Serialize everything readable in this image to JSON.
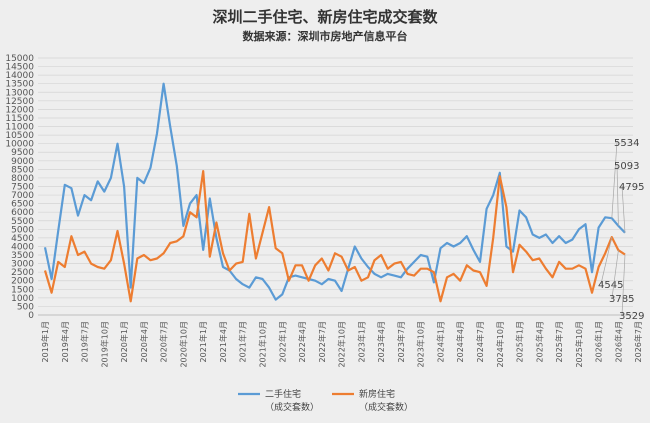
{
  "chart_data": {
    "type": "line",
    "title": "深圳二手住宅、新房住宅成交套数",
    "subtitle": "数据来源：深圳市房地产信息平台",
    "ylim": [
      0,
      15000
    ],
    "yticks": [
      0,
      500,
      1000,
      1500,
      2000,
      2500,
      3000,
      3500,
      4000,
      4500,
      5000,
      5500,
      6000,
      6500,
      7000,
      7500,
      8000,
      8500,
      9000,
      9500,
      10000,
      10500,
      11000,
      11500,
      12000,
      12500,
      13000,
      13500,
      14000,
      14500,
      15000
    ],
    "x_labels": [
      "2019年1月",
      "2019年4月",
      "2019年7月",
      "2019年10月",
      "2020年1月",
      "2020年4月",
      "2020年7月",
      "2020年10月",
      "2021年1月",
      "2021年4月",
      "2021年7月",
      "2021年10月",
      "2022年1月",
      "2022年4月",
      "2022年7月",
      "2022年10月",
      "2023年1月",
      "2023年4月",
      "2023年7月",
      "2023年10月",
      "2024年1月",
      "2024年4月",
      "2024年7月",
      "2024年10月",
      "2025年1月",
      "2025年4月",
      "2025年7月",
      "2025年10月",
      "2026年1月",
      "2026年4月",
      "2026年7月"
    ],
    "series": [
      {
        "name": "二手住宅",
        "legend_line2": "（成交套数）",
        "color": "#5b9bd5",
        "values": [
          3950,
          2100,
          4900,
          7600,
          7400,
          5800,
          7000,
          6700,
          7800,
          7200,
          8000,
          10000,
          7500,
          1600,
          8000,
          7700,
          8600,
          10600,
          13500,
          11000,
          8700,
          5200,
          6500,
          7000,
          3800,
          6800,
          4500,
          2800,
          2600,
          2100,
          1800,
          1600,
          2200,
          2100,
          1600,
          900,
          1200,
          2200,
          2300,
          2200,
          2100,
          2000,
          1800,
          2100,
          2000,
          1400,
          2700,
          4000,
          3300,
          2800,
          2400,
          2200,
          2400,
          2300,
          2200,
          2700,
          3100,
          3500,
          3400,
          1900,
          3900,
          4200,
          4000,
          4200,
          4600,
          3800,
          3100,
          6200,
          7000,
          8300,
          4000,
          3700,
          6100,
          5700,
          4700,
          4500,
          4700,
          4200,
          4600,
          4200,
          4400,
          5000,
          5300,
          2500,
          5100,
          5700,
          5650,
          5200,
          4795
        ],
        "end_label": "4795"
      },
      {
        "name": "新房住宅",
        "legend_line2": "（成交套数）",
        "color": "#ed7d31",
        "values": [
          2600,
          1300,
          3100,
          2800,
          4600,
          3500,
          3700,
          3000,
          2800,
          2700,
          3200,
          4900,
          3000,
          800,
          3300,
          3500,
          3200,
          3300,
          3600,
          4200,
          4300,
          4600,
          6000,
          5700,
          8400,
          3400,
          5400,
          3600,
          2600,
          3000,
          3100,
          5900,
          3300,
          4800,
          6300,
          3900,
          3600,
          2000,
          2900,
          2900,
          2000,
          2900,
          3300,
          2600,
          3600,
          3400,
          2600,
          2800,
          2000,
          2200,
          3200,
          3500,
          2700,
          3000,
          3100,
          2400,
          2300,
          2700,
          2700,
          2500,
          800,
          2200,
          2400,
          2000,
          2900,
          2600,
          2500,
          1700,
          4500,
          8100,
          6300,
          2500,
          4100,
          3700,
          3200,
          3300,
          2700,
          2200,
          3100,
          2700,
          2700,
          2900,
          2700,
          1300,
          2800,
          3600,
          4545,
          3785,
          3529
        ],
        "end_label": "3529"
      }
    ],
    "annotations": [
      "5534",
      "5093",
      "4795",
      "4545",
      "3785",
      "3529"
    ],
    "grid": true,
    "legend_position": "bottom-center"
  }
}
